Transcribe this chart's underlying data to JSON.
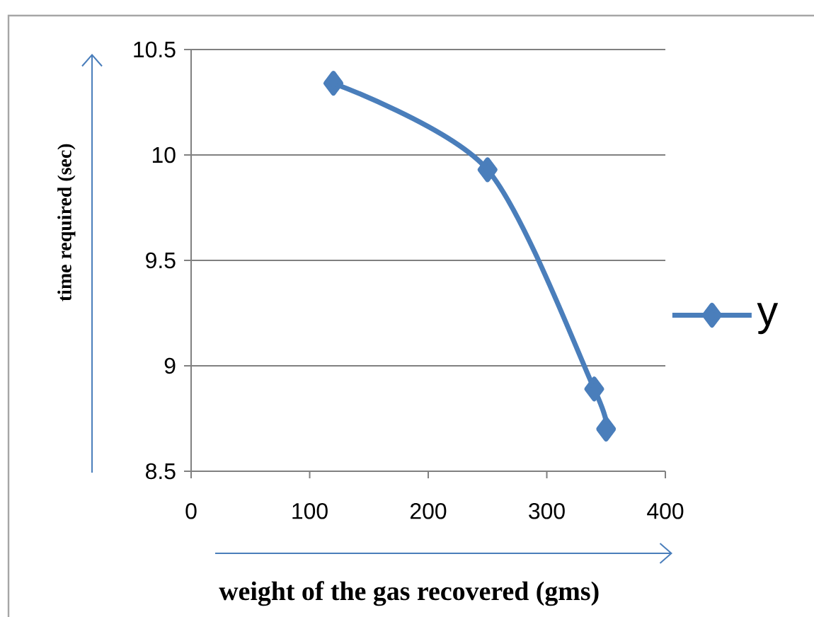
{
  "chart_data": {
    "type": "line",
    "xlabel": "weight of the gas recovered (gms)",
    "ylabel": "time required (sec)",
    "x": [
      120,
      250,
      340,
      350
    ],
    "series": [
      {
        "name": "y",
        "color": "#4a7ebb",
        "values": [
          10.34,
          9.93,
          8.89,
          8.7
        ]
      }
    ],
    "xlim": [
      0,
      400
    ],
    "xticks": [
      0,
      100,
      200,
      300,
      400
    ],
    "ylim": [
      8.5,
      10.5
    ],
    "yticks": [
      8.5,
      9,
      9.5,
      10,
      10.5
    ],
    "grid": "y",
    "legend": "right",
    "marker": "diamond",
    "line_style": "solid"
  }
}
